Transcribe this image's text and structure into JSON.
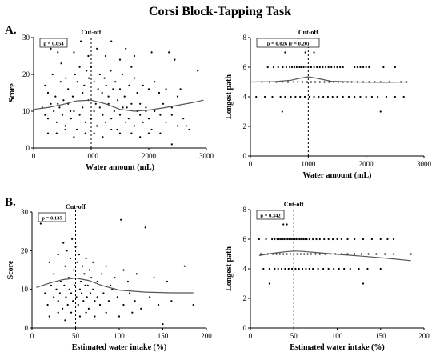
{
  "figure": {
    "title": "Corsi Block-Tapping Task",
    "panel_labels": [
      "A.",
      "B."
    ]
  },
  "chart_data": [
    {
      "id": "A-left",
      "type": "scatter",
      "xlabel": "Water amount (mL)",
      "ylabel": "Score",
      "xlim": [
        0,
        3000
      ],
      "ylim": [
        0,
        30
      ],
      "xticks": [
        0,
        1000,
        2000,
        3000
      ],
      "yticks": [
        0,
        10,
        20,
        30
      ],
      "annotation": "p = 0.054",
      "cutoff": {
        "x": 1000,
        "label": "Cut-off"
      },
      "fit": {
        "x": [
          0,
          250,
          500,
          750,
          1000,
          1250,
          1500,
          1750,
          2000,
          2250,
          2500,
          2750,
          2950
        ],
        "y": [
          10.5,
          11.0,
          11.8,
          12.8,
          13.0,
          12.0,
          10.5,
          10.0,
          10.3,
          10.9,
          11.6,
          12.3,
          13.0
        ]
      },
      "points": [
        [
          300,
          27
        ],
        [
          420,
          26
        ],
        [
          480,
          23
        ],
        [
          700,
          26
        ],
        [
          820,
          29
        ],
        [
          950,
          25
        ],
        [
          1100,
          27
        ],
        [
          1250,
          25
        ],
        [
          1350,
          29
        ],
        [
          1500,
          24
        ],
        [
          1600,
          27
        ],
        [
          1750,
          25
        ],
        [
          2050,
          26
        ],
        [
          2350,
          26
        ],
        [
          2450,
          24
        ],
        [
          2850,
          21
        ],
        [
          200,
          17
        ],
        [
          250,
          15
        ],
        [
          330,
          20
        ],
        [
          380,
          14
        ],
        [
          420,
          12
        ],
        [
          470,
          18
        ],
        [
          520,
          13
        ],
        [
          560,
          19
        ],
        [
          600,
          16
        ],
        [
          640,
          10
        ],
        [
          680,
          14
        ],
        [
          720,
          20
        ],
        [
          760,
          18
        ],
        [
          800,
          22
        ],
        [
          850,
          15
        ],
        [
          880,
          17
        ],
        [
          920,
          21
        ],
        [
          960,
          19
        ],
        [
          1000,
          22
        ],
        [
          1050,
          18
        ],
        [
          1080,
          12
        ],
        [
          1120,
          16
        ],
        [
          1150,
          20
        ],
        [
          1190,
          15
        ],
        [
          1230,
          19
        ],
        [
          1260,
          17
        ],
        [
          1300,
          14
        ],
        [
          1340,
          21
        ],
        [
          1380,
          16
        ],
        [
          1420,
          18
        ],
        [
          1460,
          13
        ],
        [
          1500,
          16
        ],
        [
          1540,
          20
        ],
        [
          1580,
          14
        ],
        [
          1620,
          11
        ],
        [
          1660,
          17
        ],
        [
          1700,
          22
        ],
        [
          1750,
          19
        ],
        [
          1800,
          15
        ],
        [
          1850,
          12
        ],
        [
          1900,
          17
        ],
        [
          1950,
          10
        ],
        [
          2000,
          16
        ],
        [
          2100,
          18
        ],
        [
          2180,
          15
        ],
        [
          2250,
          12
        ],
        [
          2300,
          16
        ],
        [
          2400,
          9
        ],
        [
          2500,
          14
        ],
        [
          2550,
          16
        ],
        [
          150,
          11
        ],
        [
          200,
          9
        ],
        [
          250,
          8
        ],
        [
          300,
          12
        ],
        [
          350,
          10
        ],
        [
          400,
          7
        ],
        [
          450,
          11
        ],
        [
          500,
          9
        ],
        [
          550,
          6
        ],
        [
          600,
          12
        ],
        [
          650,
          8
        ],
        [
          700,
          10
        ],
        [
          750,
          5
        ],
        [
          800,
          9
        ],
        [
          850,
          11
        ],
        [
          900,
          7
        ],
        [
          950,
          13
        ],
        [
          1000,
          8
        ],
        [
          1050,
          10
        ],
        [
          1100,
          6
        ],
        [
          1150,
          11
        ],
        [
          1200,
          9
        ],
        [
          1250,
          7
        ],
        [
          1300,
          12
        ],
        [
          1350,
          8
        ],
        [
          1400,
          10
        ],
        [
          1450,
          5
        ],
        [
          1500,
          9
        ],
        [
          1550,
          11
        ],
        [
          1600,
          7
        ],
        [
          1650,
          8
        ],
        [
          1700,
          12
        ],
        [
          1750,
          6
        ],
        [
          1800,
          10
        ],
        [
          1850,
          9
        ],
        [
          1900,
          7
        ],
        [
          1950,
          11
        ],
        [
          2000,
          8
        ],
        [
          2050,
          5
        ],
        [
          2100,
          10
        ],
        [
          2200,
          9
        ],
        [
          2300,
          7
        ],
        [
          2400,
          11
        ],
        [
          2500,
          6
        ],
        [
          2600,
          8
        ],
        [
          2700,
          5
        ],
        [
          250,
          4
        ],
        [
          400,
          4
        ],
        [
          550,
          5
        ],
        [
          700,
          3
        ],
        [
          900,
          4
        ],
        [
          1050,
          4
        ],
        [
          1200,
          3
        ],
        [
          1350,
          5
        ],
        [
          1500,
          4
        ],
        [
          1700,
          4
        ],
        [
          1850,
          3
        ],
        [
          2000,
          4
        ],
        [
          2200,
          4
        ],
        [
          2400,
          1
        ],
        [
          2650,
          6
        ]
      ]
    },
    {
      "id": "A-right",
      "type": "scatter",
      "xlabel": "Water amount (mL)",
      "ylabel": "Longest path",
      "xlim": [
        0,
        3000
      ],
      "ylim": [
        0,
        8
      ],
      "xticks": [
        0,
        1000,
        2000,
        3000
      ],
      "yticks": [
        0,
        2,
        4,
        6,
        8
      ],
      "annotation": "p = 0.026 (r = 0.20)",
      "cutoff": {
        "x": 1000,
        "label": "Cut-off"
      },
      "fit": {
        "x": [
          0,
          400,
          700,
          850,
          1000,
          1150,
          1400,
          1800,
          2300,
          2700
        ],
        "y": [
          5.0,
          5.02,
          5.12,
          5.25,
          5.35,
          5.25,
          5.05,
          5.0,
          4.98,
          5.0
        ]
      },
      "point_rows": [
        {
          "y": 7,
          "x": [
            600,
            950,
            1100
          ]
        },
        {
          "y": 6,
          "x": [
            300,
            400,
            480,
            560,
            620,
            680,
            720,
            760,
            800,
            850,
            880,
            920,
            960,
            1000,
            1050,
            1100,
            1150,
            1200,
            1250,
            1300,
            1350,
            1400,
            1450,
            1500,
            1550,
            1600,
            1800,
            1850,
            1900,
            1950,
            2000,
            2050,
            2300,
            2500
          ]
        },
        {
          "y": 5,
          "x": [
            200,
            330,
            450,
            550,
            650,
            750,
            820,
            900,
            980,
            1050,
            1120,
            1200,
            1280,
            1360,
            1440,
            1520,
            1600,
            1680,
            1750,
            1850,
            1950,
            2050,
            2150,
            2250,
            2400,
            2600,
            2700
          ]
        },
        {
          "y": 4,
          "x": [
            100,
            250,
            380,
            520,
            600,
            700,
            780,
            860,
            940,
            1020,
            1100,
            1180,
            1260,
            1340,
            1420,
            1500,
            1600,
            1700,
            1800,
            1900,
            2000,
            2100,
            2200,
            2350,
            2500,
            2650
          ]
        },
        {
          "y": 3,
          "x": [
            550,
            2250
          ]
        }
      ]
    },
    {
      "id": "B-left",
      "type": "scatter",
      "xlabel": "Estimated water intake (%)",
      "ylabel": "Score",
      "xlim": [
        0,
        200
      ],
      "ylim": [
        0,
        30
      ],
      "xticks": [
        0,
        50,
        100,
        150,
        200
      ],
      "yticks": [
        0,
        10,
        20,
        30
      ],
      "annotation": "p = 0.135",
      "cutoff": {
        "x": 50,
        "label": "Cut-off"
      },
      "fit": {
        "x": [
          5,
          20,
          35,
          50,
          65,
          80,
          100,
          130,
          160,
          185
        ],
        "y": [
          10.5,
          11.6,
          12.5,
          12.9,
          12.3,
          11.0,
          9.8,
          9.3,
          9.1,
          9.1
        ]
      },
      "points": [
        [
          10,
          27
        ],
        [
          102,
          28
        ],
        [
          130,
          26
        ],
        [
          175,
          16
        ],
        [
          20,
          17
        ],
        [
          25,
          14
        ],
        [
          30,
          19
        ],
        [
          33,
          12
        ],
        [
          36,
          22
        ],
        [
          38,
          16
        ],
        [
          40,
          20
        ],
        [
          42,
          13
        ],
        [
          44,
          18
        ],
        [
          46,
          23
        ],
        [
          48,
          15
        ],
        [
          50,
          21
        ],
        [
          52,
          17
        ],
        [
          54,
          19
        ],
        [
          56,
          12
        ],
        [
          58,
          16
        ],
        [
          60,
          14
        ],
        [
          62,
          18
        ],
        [
          64,
          11
        ],
        [
          66,
          15
        ],
        [
          68,
          13
        ],
        [
          70,
          17
        ],
        [
          75,
          12
        ],
        [
          80,
          14
        ],
        [
          85,
          16
        ],
        [
          90,
          11
        ],
        [
          95,
          13
        ],
        [
          105,
          15
        ],
        [
          110,
          12
        ],
        [
          120,
          14
        ],
        [
          140,
          13
        ],
        [
          155,
          12
        ],
        [
          15,
          9
        ],
        [
          18,
          6
        ],
        [
          22,
          11
        ],
        [
          25,
          8
        ],
        [
          28,
          10
        ],
        [
          30,
          7
        ],
        [
          32,
          9
        ],
        [
          35,
          5
        ],
        [
          37,
          11
        ],
        [
          39,
          8
        ],
        [
          41,
          6
        ],
        [
          43,
          10
        ],
        [
          45,
          9
        ],
        [
          47,
          7
        ],
        [
          49,
          11
        ],
        [
          51,
          8
        ],
        [
          53,
          6
        ],
        [
          55,
          10
        ],
        [
          57,
          9
        ],
        [
          59,
          7
        ],
        [
          61,
          11
        ],
        [
          63,
          8
        ],
        [
          65,
          5
        ],
        [
          67,
          9
        ],
        [
          70,
          10
        ],
        [
          72,
          7
        ],
        [
          75,
          8
        ],
        [
          78,
          6
        ],
        [
          82,
          9
        ],
        [
          88,
          7
        ],
        [
          92,
          10
        ],
        [
          98,
          8
        ],
        [
          105,
          6
        ],
        [
          112,
          9
        ],
        [
          118,
          7
        ],
        [
          125,
          5
        ],
        [
          135,
          8
        ],
        [
          145,
          6
        ],
        [
          160,
          7
        ],
        [
          185,
          6
        ],
        [
          20,
          3
        ],
        [
          30,
          4
        ],
        [
          38,
          2
        ],
        [
          45,
          4
        ],
        [
          55,
          3
        ],
        [
          62,
          4
        ],
        [
          72,
          3
        ],
        [
          85,
          4
        ],
        [
          100,
          3
        ],
        [
          115,
          4
        ],
        [
          150,
          1
        ]
      ]
    },
    {
      "id": "B-right",
      "type": "scatter",
      "xlabel": "Estimated water intake (%)",
      "ylabel": "Longest path",
      "xlim": [
        0,
        200
      ],
      "ylim": [
        0,
        8
      ],
      "xticks": [
        0,
        50,
        100,
        150,
        200
      ],
      "yticks": [
        0,
        2,
        4,
        6,
        8
      ],
      "annotation": "p = 0.342",
      "cutoff": {
        "x": 50,
        "label": "Cut-off"
      },
      "fit": {
        "x": [
          10,
          25,
          40,
          50,
          60,
          80,
          100,
          130,
          160,
          185
        ],
        "y": [
          4.9,
          5.05,
          5.15,
          5.2,
          5.18,
          5.08,
          4.98,
          4.85,
          4.7,
          4.55
        ]
      },
      "point_rows": [
        {
          "y": 7,
          "x": [
            38,
            42
          ]
        },
        {
          "y": 6,
          "x": [
            10,
            18,
            25,
            28,
            31,
            33,
            35,
            37,
            39,
            41,
            43,
            45,
            47,
            49,
            51,
            53,
            55,
            57,
            59,
            61,
            63,
            65,
            68,
            72,
            76,
            80,
            85,
            90,
            95,
            100,
            105,
            112,
            120,
            130,
            140,
            150,
            158,
            165
          ]
        },
        {
          "y": 5,
          "x": [
            12,
            20,
            26,
            30,
            34,
            38,
            42,
            46,
            50,
            54,
            58,
            62,
            66,
            70,
            75,
            80,
            86,
            92,
            98,
            105,
            112,
            120,
            128,
            136,
            145,
            155,
            165,
            185
          ]
        },
        {
          "y": 4,
          "x": [
            15,
            22,
            28,
            32,
            36,
            40,
            44,
            48,
            52,
            56,
            60,
            64,
            68,
            72,
            78,
            84,
            90,
            96,
            102,
            108,
            115,
            125,
            135,
            150
          ]
        },
        {
          "y": 3,
          "x": [
            22,
            130
          ]
        }
      ]
    }
  ]
}
